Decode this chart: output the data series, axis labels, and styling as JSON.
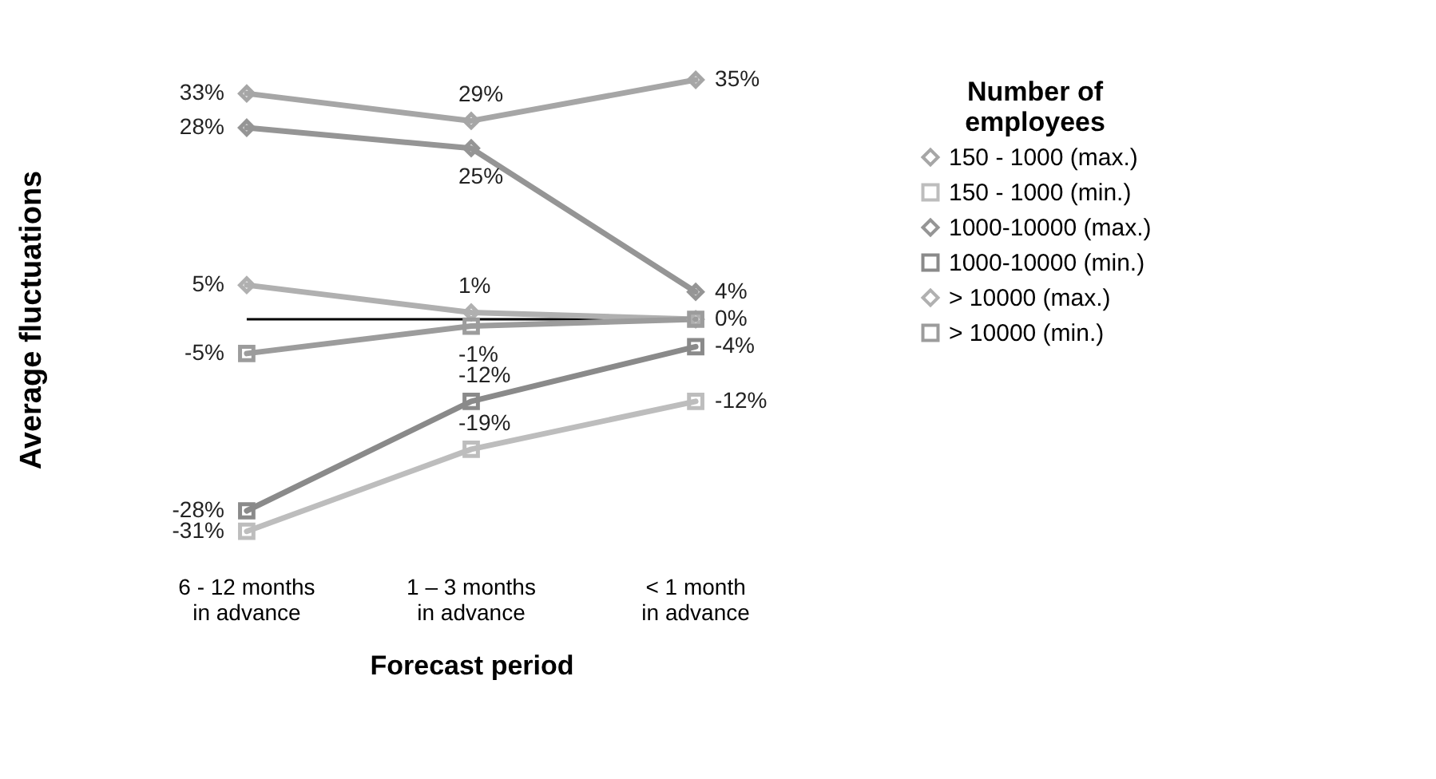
{
  "chart_data": {
    "type": "line",
    "xlabel": "Forecast period",
    "ylabel": "Average fluctuations",
    "legend_title": "Number of employees",
    "legend": "right",
    "grid": false,
    "categories": [
      "6 - 12 months\nin advance",
      "1 – 3 months\nin advance",
      "< 1 month\nin advance"
    ],
    "series": [
      {
        "name": "150 - 1000 (max.)",
        "color": "#a6a6a6",
        "marker": "diamond",
        "values": [
          33,
          29,
          35
        ],
        "value_labels": [
          "33%",
          "29%",
          "35%"
        ]
      },
      {
        "name": "150 - 1000 (min.)",
        "color": "#bdbdbd",
        "marker": "square",
        "values": [
          -31,
          -19,
          -12
        ],
        "value_labels": [
          "-31%",
          "-19%",
          "-12%"
        ]
      },
      {
        "name": "1000-10000 (max.)",
        "color": "#959595",
        "marker": "diamond",
        "values": [
          28,
          25,
          4
        ],
        "value_labels": [
          "28%",
          "25%",
          "4%"
        ]
      },
      {
        "name": "1000-10000 (min.)",
        "color": "#8a8a8a",
        "marker": "square",
        "values": [
          -28,
          -12,
          -4
        ],
        "value_labels": [
          "-28%",
          "-12%",
          "-4%"
        ]
      },
      {
        "name": "> 10000 (max.)",
        "color": "#b0b0b0",
        "marker": "diamond",
        "values": [
          5,
          1,
          0
        ],
        "value_labels": [
          "5%",
          "1%",
          null
        ]
      },
      {
        "name": "> 10000 (min.)",
        "color": "#9c9c9c",
        "marker": "square",
        "values": [
          -5,
          -1,
          0
        ],
        "value_labels": [
          "-5%",
          "-1%",
          "0%"
        ]
      }
    ],
    "ref_lines": [
      {
        "axis": "y",
        "value": 0,
        "color": "#000000"
      }
    ]
  }
}
